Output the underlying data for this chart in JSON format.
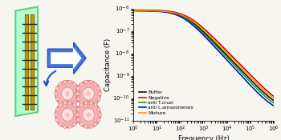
{
  "title": "",
  "xlabel": "Frequency (Hz)",
  "ylabel": "Capacitance (F)",
  "xmin": 1.0,
  "xmax": 1000000.0,
  "ymin": 1e-11,
  "ymax": 1e-06,
  "series": [
    {
      "label": "Buffer",
      "color": "#000000",
      "cap_high": 8e-07,
      "cap_low": 2.5e-11,
      "f_mid": 150,
      "steep": 1.1
    },
    {
      "label": "Negative",
      "color": "#cc0000",
      "cap_high": 8.5e-07,
      "cap_low": 3e-11,
      "f_mid": 200,
      "steep": 1.08
    },
    {
      "label": "anti T.cruzi",
      "color": "#00aa00",
      "cap_high": 8.2e-07,
      "cap_low": 2.2e-11,
      "f_mid": 130,
      "steep": 1.12
    },
    {
      "label": "anti L.amazonensis",
      "color": "#0000cc",
      "cap_high": 7.8e-07,
      "cap_low": 2e-11,
      "f_mid": 120,
      "steep": 1.15
    },
    {
      "label": "Mixture",
      "color": "#ff8800",
      "cap_high": 8e-07,
      "cap_low": 2.6e-11,
      "f_mid": 180,
      "steep": 1.09
    }
  ],
  "bg_color": "#f7f5f0",
  "border_color": "#dd3300",
  "glass_color": "#aaffcc",
  "glass_edge_color": "#55cc77",
  "electrode_color": "#cc9900",
  "arrow_color": "#2255cc",
  "cell_face": "#f5aaaa",
  "cell_edge": "#cc6666"
}
